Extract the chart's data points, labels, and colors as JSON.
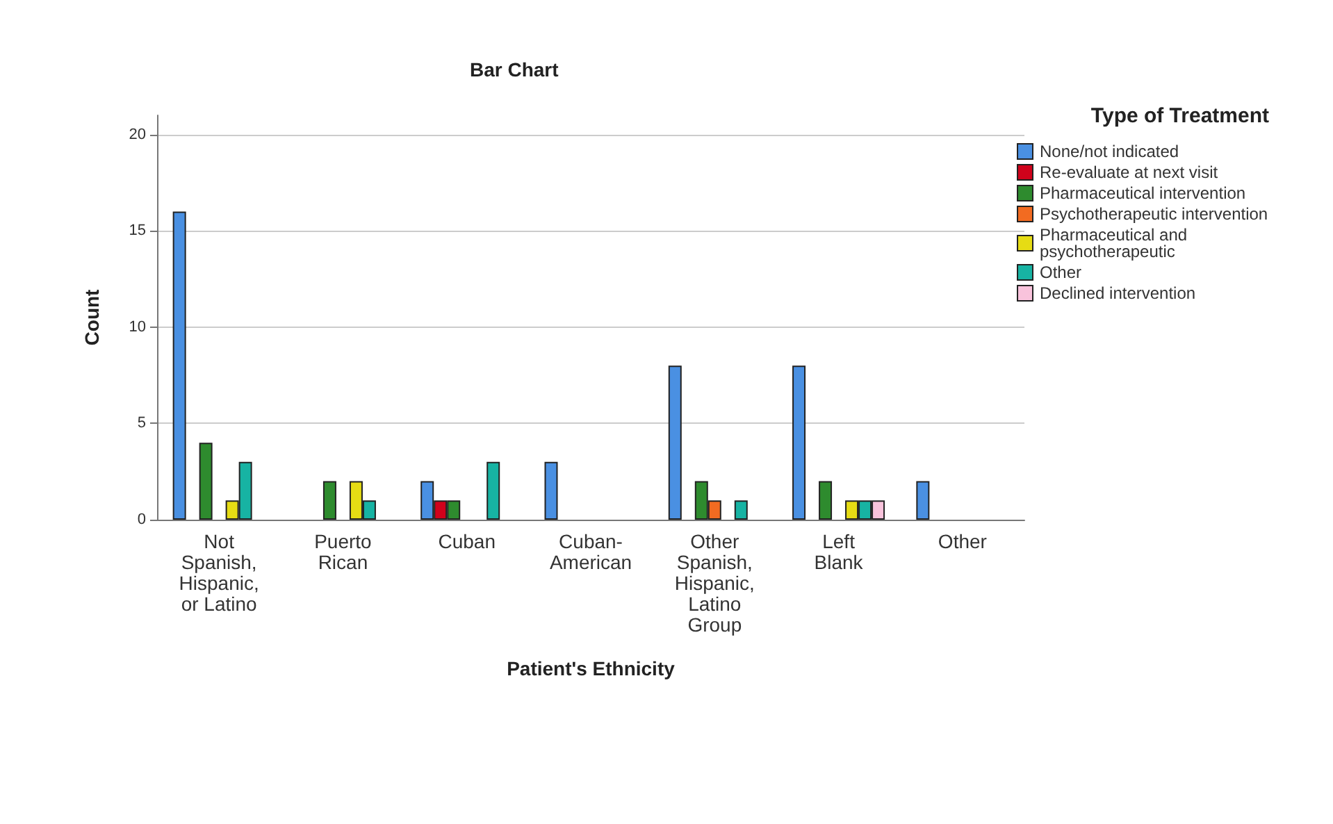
{
  "chart_data": {
    "type": "bar",
    "title": "Bar Chart",
    "xlabel": "Patient's Ethnicity",
    "ylabel": "Count",
    "legend_title": "Type of Treatment",
    "legend": "top right",
    "grid": "y",
    "categories": [
      "Not Spanish, Hispanic, or Latino",
      "Puerto Rican",
      "Cuban",
      "Cuban-American",
      "Other Spanish, Hispanic, Latino Group",
      "Left Blank",
      "Other"
    ],
    "ylim": [
      0,
      21
    ],
    "yticks": [
      0,
      5,
      10,
      15,
      20
    ],
    "series": [
      {
        "name": "None/not indicated",
        "color": "#4a90e2",
        "values": [
          16,
          null,
          2,
          3,
          8,
          8,
          2
        ]
      },
      {
        "name": "Re-evaluate at next visit",
        "color": "#d0021b",
        "values": [
          null,
          null,
          1,
          null,
          null,
          null,
          null
        ]
      },
      {
        "name": "Pharmaceutical intervention",
        "color": "#2e8b2e",
        "values": [
          4,
          2,
          1,
          null,
          2,
          2,
          null
        ]
      },
      {
        "name": "Psychotherapeutic intervention",
        "color": "#f26b21",
        "values": [
          null,
          null,
          null,
          null,
          1,
          null,
          null
        ]
      },
      {
        "name": "Pharmaceutical and psychotherapeutic",
        "color": "#e6dc14",
        "values": [
          1,
          2,
          null,
          null,
          null,
          1,
          null
        ]
      },
      {
        "name": "Other",
        "color": "#17b3a3",
        "values": [
          3,
          1,
          3,
          null,
          1,
          1,
          null
        ]
      },
      {
        "name": "Declined intervention",
        "color": "#f9c3dc",
        "values": [
          null,
          null,
          null,
          null,
          null,
          1,
          null
        ]
      }
    ]
  }
}
